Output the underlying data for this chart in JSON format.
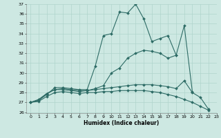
{
  "xlabel": "Humidex (Indice chaleur)",
  "xlim": [
    -0.5,
    23
  ],
  "ylim": [
    26,
    37
  ],
  "yticks": [
    26,
    27,
    28,
    29,
    30,
    31,
    32,
    33,
    34,
    35,
    36,
    37
  ],
  "xticks": [
    0,
    1,
    2,
    3,
    4,
    5,
    6,
    7,
    8,
    9,
    10,
    11,
    12,
    13,
    14,
    15,
    16,
    17,
    18,
    19,
    20,
    21,
    22,
    23
  ],
  "bg_color": "#cde8e2",
  "line_color": "#2d6b65",
  "grid_color": "#afd4cc",
  "series": [
    [
      27.0,
      27.2,
      27.8,
      28.5,
      28.5,
      28.4,
      28.3,
      28.3,
      30.7,
      33.8,
      34.0,
      36.2,
      36.1,
      37.0,
      35.5,
      33.2,
      33.5,
      33.8,
      31.8,
      null,
      null,
      null,
      null,
      null
    ],
    [
      27.0,
      27.3,
      27.9,
      28.3,
      28.4,
      28.3,
      28.2,
      28.2,
      28.4,
      28.7,
      30.0,
      30.5,
      31.5,
      32.0,
      32.3,
      32.2,
      32.0,
      31.5,
      31.8,
      34.8,
      28.1,
      null,
      null,
      null
    ],
    [
      27.0,
      27.2,
      27.9,
      28.3,
      28.3,
      28.2,
      28.1,
      28.2,
      28.3,
      28.4,
      28.5,
      28.6,
      28.7,
      28.8,
      28.8,
      28.8,
      28.7,
      28.6,
      28.4,
      29.2,
      28.0,
      27.5,
      26.3,
      null
    ],
    [
      27.0,
      27.1,
      27.6,
      28.0,
      28.1,
      28.0,
      27.9,
      28.0,
      28.0,
      28.1,
      28.1,
      28.2,
      28.2,
      28.2,
      28.2,
      28.1,
      28.0,
      27.8,
      27.6,
      27.3,
      27.0,
      26.6,
      26.2,
      null
    ]
  ]
}
